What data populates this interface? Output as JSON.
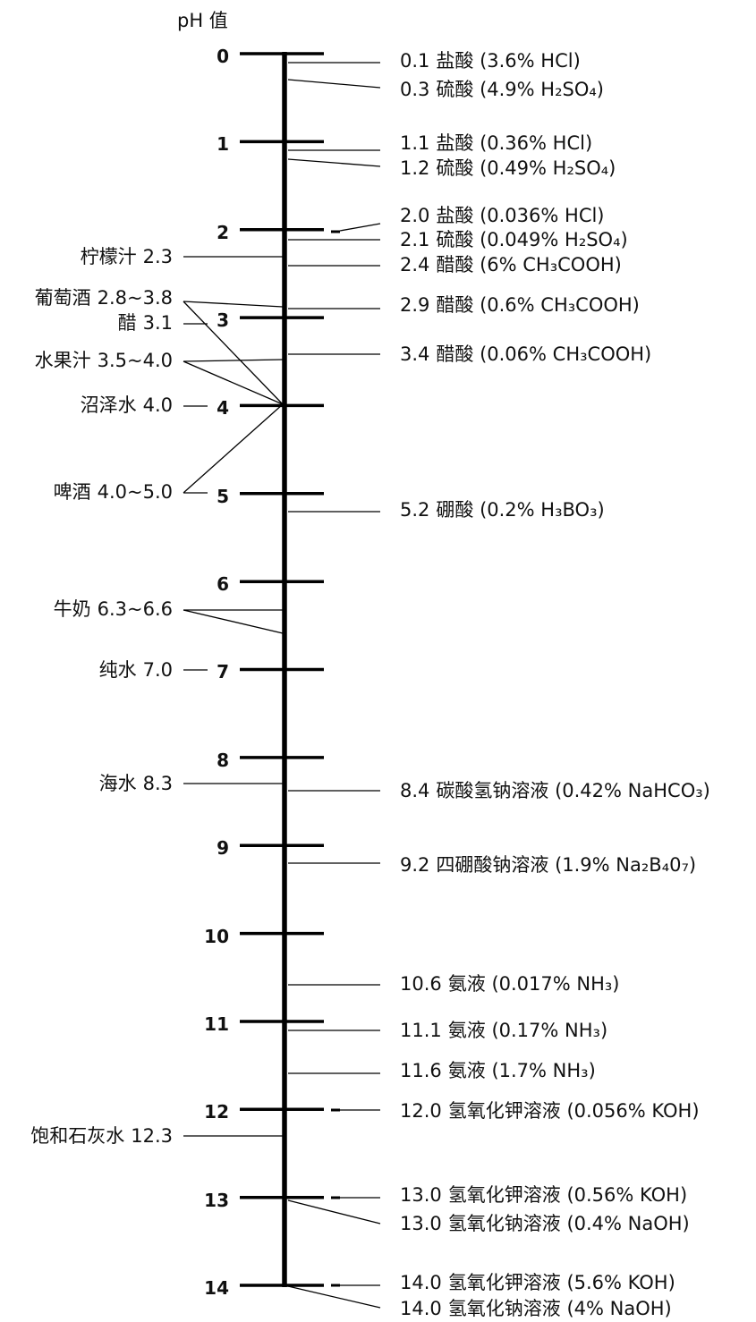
{
  "title": "pH 值",
  "ticks": [
    "0",
    "1",
    "2",
    "3",
    "4",
    "5",
    "6",
    "7",
    "8",
    "9",
    "10",
    "11",
    "12",
    "13",
    "14"
  ],
  "right_labels": [
    {
      "ph": "0.1",
      "text": "盐酸 (3.6% HCl)"
    },
    {
      "ph": "0.3",
      "text": "硫酸 (4.9% H₂SO₄)"
    },
    {
      "ph": "1.1",
      "text": "盐酸 (0.36% HCl)"
    },
    {
      "ph": "1.2",
      "text": "硫酸 (0.49% H₂SO₄)"
    },
    {
      "ph": "2.0",
      "text": "盐酸 (0.036% HCl)"
    },
    {
      "ph": "2.1",
      "text": "硫酸 (0.049% H₂SO₄)"
    },
    {
      "ph": "2.4",
      "text": "醋酸 (6% CH₃COOH)"
    },
    {
      "ph": "2.9",
      "text": "醋酸 (0.6% CH₃COOH)"
    },
    {
      "ph": "3.4",
      "text": "醋酸 (0.06% CH₃COOH)"
    },
    {
      "ph": "5.2",
      "text": "硼酸 (0.2% H₃BO₃)"
    },
    {
      "ph": "8.4",
      "text": "碳酸氢钠溶液 (0.42% NaHCO₃)"
    },
    {
      "ph": "9.2",
      "text": "四硼酸钠溶液 (1.9% Na₂B₄0₇)"
    },
    {
      "ph": "10.6",
      "text": "氨液 (0.017% NH₃)"
    },
    {
      "ph": "11.1",
      "text": "氨液 (0.17% NH₃)"
    },
    {
      "ph": "11.6",
      "text": "氨液 (1.7% NH₃)"
    },
    {
      "ph": "12.0",
      "text": "氢氧化钾溶液 (0.056% KOH)"
    },
    {
      "ph": "13.0",
      "text": "氢氧化钾溶液 (0.56% KOH)"
    },
    {
      "ph": "13.0",
      "text": "氢氧化钠溶液 (0.4% NaOH)"
    },
    {
      "ph": "14.0",
      "text": "氢氧化钾溶液 (5.6% KOH)"
    },
    {
      "ph": "14.0",
      "text": "氢氧化钠溶液 (4% NaOH)"
    }
  ],
  "left_labels": [
    {
      "text": "柠檬汁",
      "ph": "2.3"
    },
    {
      "text": "葡萄酒",
      "ph": "2.8~3.8"
    },
    {
      "text": "醋",
      "ph": "3.1"
    },
    {
      "text": "水果汁",
      "ph": "3.5~4.0"
    },
    {
      "text": "沼泽水",
      "ph": "4.0"
    },
    {
      "text": "啤酒",
      "ph": "4.0~5.0"
    },
    {
      "text": "牛奶",
      "ph": "6.3~6.6"
    },
    {
      "text": "纯水",
      "ph": "7.0"
    },
    {
      "text": "海水",
      "ph": "8.3"
    },
    {
      "text": "饱和石灰水",
      "ph": "12.3"
    }
  ]
}
